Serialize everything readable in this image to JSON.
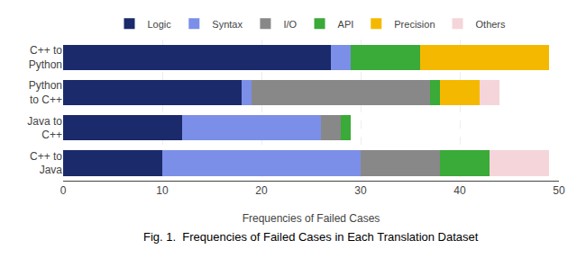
{
  "chart_data": {
    "type": "bar",
    "orientation": "horizontal",
    "stacked": true,
    "categories": [
      "C++ to\nPython",
      "Python\nto C++",
      "Java to\nC++",
      "C++ to\nJava"
    ],
    "series": [
      {
        "name": "Logic",
        "color": "#1b2a6b",
        "values": [
          27,
          18,
          12,
          10
        ]
      },
      {
        "name": "Syntax",
        "color": "#7b8fe8",
        "values": [
          2,
          1,
          14,
          20
        ]
      },
      {
        "name": "I/O",
        "color": "#888888",
        "values": [
          0,
          18,
          2,
          8
        ]
      },
      {
        "name": "API",
        "color": "#3aaa38",
        "values": [
          7,
          1,
          1,
          5
        ]
      },
      {
        "name": "Precision",
        "color": "#f5b800",
        "values": [
          13,
          4,
          0,
          0
        ]
      },
      {
        "name": "Others",
        "color": "#f5d5da",
        "values": [
          0,
          2,
          0,
          6
        ]
      }
    ],
    "xlabel": "Frequencies of Failed Cases",
    "xlim": [
      0,
      50
    ],
    "xticks": [
      0,
      10,
      20,
      30,
      40,
      50
    ],
    "grid": true,
    "legend": "upper center",
    "annotations": [
      "Fig. 1.  Frequencies of Failed Cases in Each Translation Dataset"
    ]
  }
}
